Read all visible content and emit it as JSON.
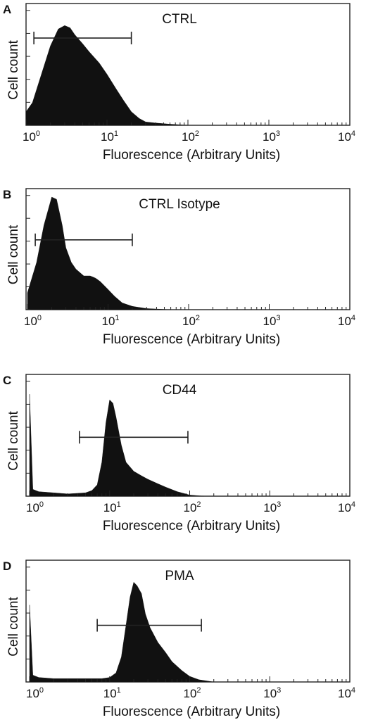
{
  "chart_data": [
    {
      "panel": "A",
      "type": "area",
      "title": "CTRL",
      "xlabel": "Fluorescence (Arbitrary Units)",
      "ylabel": "Cell count",
      "x_scale": "log",
      "xlim": [
        1,
        10000
      ],
      "x_ticks": [
        {
          "base": "10",
          "exp": "0"
        },
        {
          "base": "10",
          "exp": "1"
        },
        {
          "base": "10",
          "exp": "2"
        },
        {
          "base": "10",
          "exp": "3"
        },
        {
          "base": "10",
          "exp": "4"
        }
      ],
      "gate": [
        1.25,
        20
      ],
      "series": [
        {
          "x": [
            1,
            1.2,
            1.5,
            2,
            2.5,
            3,
            3.5,
            4,
            5,
            6,
            8,
            10,
            13,
            16,
            20,
            25,
            30,
            40,
            60,
            100
          ],
          "y": [
            0.12,
            0.2,
            0.42,
            0.7,
            0.85,
            0.88,
            0.86,
            0.8,
            0.72,
            0.65,
            0.55,
            0.45,
            0.32,
            0.22,
            0.12,
            0.06,
            0.03,
            0.02,
            0.01,
            0.0
          ]
        }
      ]
    },
    {
      "panel": "B",
      "type": "area",
      "title": "CTRL Isotype",
      "xlabel": "Fluorescence (Arbitrary Units)",
      "ylabel": "Cell count",
      "x_scale": "log",
      "xlim": [
        1,
        10000
      ],
      "x_ticks": [
        {
          "base": "10",
          "exp": "0"
        },
        {
          "base": "10",
          "exp": "1"
        },
        {
          "base": "10",
          "exp": "2"
        },
        {
          "base": "10",
          "exp": "3"
        },
        {
          "base": "10",
          "exp": "4"
        }
      ],
      "gate": [
        1.25,
        20
      ],
      "series": [
        {
          "x": [
            1,
            1.3,
            1.6,
            2,
            2.3,
            2.7,
            3,
            3.5,
            4,
            5,
            6,
            7,
            8,
            10,
            12,
            15,
            20,
            30,
            60
          ],
          "y": [
            0.15,
            0.42,
            0.75,
            1.0,
            0.98,
            0.75,
            0.55,
            0.42,
            0.36,
            0.3,
            0.3,
            0.28,
            0.25,
            0.18,
            0.12,
            0.06,
            0.03,
            0.01,
            0.0
          ]
        }
      ]
    },
    {
      "panel": "C",
      "type": "area",
      "title": "CD44",
      "xlabel": "Fluorescence (Arbitrary Units)",
      "ylabel": "Cell count",
      "x_scale": "log",
      "xlim": [
        1,
        10000
      ],
      "x_ticks": [
        {
          "base": "10",
          "exp": "0"
        },
        {
          "base": "10",
          "exp": "1"
        },
        {
          "base": "10",
          "exp": "2"
        },
        {
          "base": "10",
          "exp": "3"
        },
        {
          "base": "10",
          "exp": "4"
        }
      ],
      "gate": [
        4.2,
        95
      ],
      "series": [
        {
          "x": [
            1,
            1.1,
            1.3,
            2,
            3,
            5,
            6,
            7,
            8,
            9,
            10,
            11,
            12,
            14,
            16,
            20,
            25,
            30,
            40,
            50,
            70,
            100,
            150
          ],
          "y": [
            0.9,
            0.06,
            0.04,
            0.03,
            0.02,
            0.03,
            0.05,
            0.1,
            0.3,
            0.65,
            0.85,
            0.82,
            0.7,
            0.45,
            0.3,
            0.22,
            0.18,
            0.15,
            0.11,
            0.08,
            0.04,
            0.01,
            0.0
          ]
        }
      ]
    },
    {
      "panel": "D",
      "type": "area",
      "title": "PMA",
      "xlabel": "Fluorescence (Arbitrary Units)",
      "ylabel": "Cell count",
      "x_scale": "log",
      "xlim": [
        1,
        10000
      ],
      "x_ticks": [
        {
          "base": "10",
          "exp": "0"
        },
        {
          "base": "10",
          "exp": "1"
        },
        {
          "base": "10",
          "exp": "2"
        },
        {
          "base": "10",
          "exp": "3"
        },
        {
          "base": "10",
          "exp": "4"
        }
      ],
      "gate": [
        7,
        140
      ],
      "series": [
        {
          "x": [
            1,
            1.1,
            1.3,
            2,
            3,
            5,
            8,
            10,
            12,
            14,
            16,
            18,
            20,
            22,
            25,
            28,
            32,
            40,
            50,
            60,
            80,
            100,
            130,
            200
          ],
          "y": [
            0.68,
            0.06,
            0.04,
            0.03,
            0.03,
            0.03,
            0.03,
            0.04,
            0.08,
            0.22,
            0.5,
            0.75,
            0.88,
            0.85,
            0.78,
            0.6,
            0.48,
            0.35,
            0.26,
            0.18,
            0.1,
            0.05,
            0.02,
            0.0
          ]
        }
      ]
    }
  ]
}
